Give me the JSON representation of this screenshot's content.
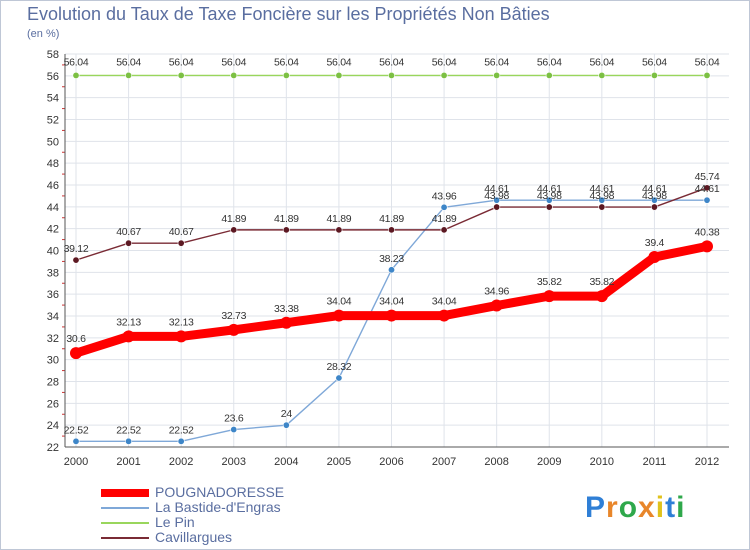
{
  "title": "Evolution du Taux de Taxe Foncière sur les Propriétés Non Bâties",
  "unit": "(en %)",
  "logo": {
    "letters": [
      "P",
      "r",
      "o",
      "x",
      "i",
      "t",
      "i"
    ],
    "colors": [
      "#2f7fd6",
      "#e8862a",
      "#2fa84b",
      "#e8862a",
      "#e0c21c",
      "#2f7fd6",
      "#2fa84b"
    ]
  },
  "chart_data": {
    "type": "line",
    "title": "Evolution du Taux de Taxe Foncière sur les Propriétés Non Bâties",
    "ylabel": "(en %)",
    "xlabel": "",
    "ylim": [
      22,
      58
    ],
    "ytick_step": 2,
    "grid": true,
    "categories": [
      "2000",
      "2001",
      "2002",
      "2003",
      "2004",
      "2005",
      "2006",
      "2007",
      "2008",
      "2009",
      "2010",
      "2011",
      "2012"
    ],
    "series": [
      {
        "name": "POUGNADORESSE",
        "color": "#ff0000",
        "marker": "#ff0000",
        "emphasis": true,
        "values": [
          30.6,
          32.13,
          32.13,
          32.73,
          33.38,
          34.04,
          34.04,
          34.04,
          34.96,
          35.82,
          35.82,
          39.4,
          40.38
        ],
        "labels": [
          "30.6",
          "32.13",
          "32.13",
          "32.73",
          "33.38",
          "34.04",
          "34.04",
          "34.04",
          "34.96",
          "35.82",
          "35.82",
          "39.4",
          "40.38"
        ]
      },
      {
        "name": "La Bastide-d'Engras",
        "color": "#7fa8d8",
        "marker": "#3e86c8",
        "emphasis": false,
        "values": [
          22.52,
          22.52,
          22.52,
          23.6,
          24,
          28.32,
          38.23,
          43.96,
          44.61,
          44.61,
          44.61,
          44.61,
          44.61
        ],
        "labels": [
          "22.52",
          "22.52",
          "22.52",
          "23.6",
          "24",
          "28.32",
          "38.23",
          "43.96",
          "44.61",
          "44.61",
          "44.61",
          "44.61",
          "44.61"
        ]
      },
      {
        "name": "Le Pin",
        "color": "#99d65c",
        "marker": "#7cc043",
        "emphasis": false,
        "values": [
          56.04,
          56.04,
          56.04,
          56.04,
          56.04,
          56.04,
          56.04,
          56.04,
          56.04,
          56.04,
          56.04,
          56.04,
          56.04
        ],
        "labels": [
          "56.04",
          "56.04",
          "56.04",
          "56.04",
          "56.04",
          "56.04",
          "56.04",
          "56.04",
          "56.04",
          "56.04",
          "56.04",
          "56.04",
          "56.04"
        ]
      },
      {
        "name": "Cavillargues",
        "color": "#7a2b35",
        "marker": "#5c1822",
        "emphasis": false,
        "values": [
          39.12,
          40.67,
          40.67,
          41.89,
          41.89,
          41.89,
          41.89,
          41.89,
          43.98,
          43.98,
          43.98,
          43.98,
          45.74
        ],
        "labels": [
          "39.12",
          "40.67",
          "40.67",
          "41.89",
          "41.89",
          "41.89",
          "41.89",
          "41.89",
          "43.98",
          "43.98",
          "43.98",
          "43.98",
          "45.74"
        ]
      }
    ]
  }
}
